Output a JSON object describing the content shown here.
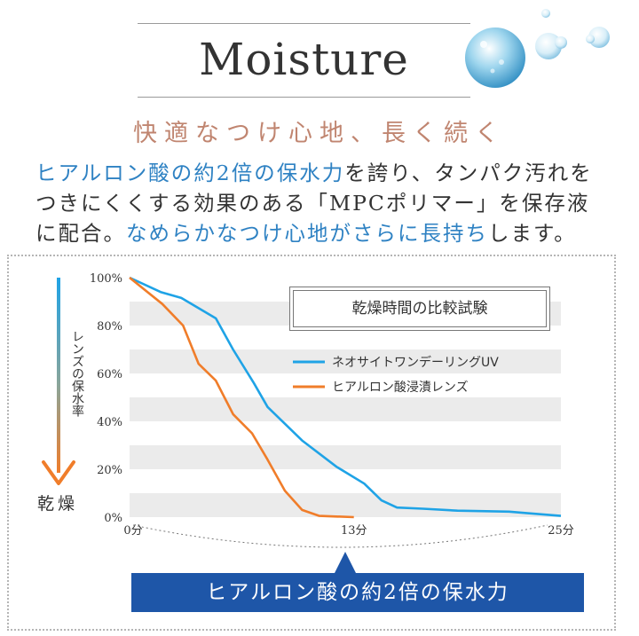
{
  "header": {
    "title": "Moisture",
    "subtitle": "快適なつけ心地、長く続く"
  },
  "body": {
    "line1_hl": "ヒアルロン酸の約2倍の保水力",
    "line1_rest": "を誇り、タンパク汚れを",
    "line2": "つきにくくする効果のある「MPCポリマー」を保存液",
    "line3_a": "に配合。",
    "line3_hl": "なめらかなつけ心地がさらに長持ち",
    "line3_b": "します。"
  },
  "colors": {
    "title_accent": "#c08570",
    "highlight_blue": "#2f82c3",
    "series_blue": "#1fa3e6",
    "series_orange": "#f07d2a",
    "badge_blue": "#1e56a8"
  },
  "chart_data": {
    "type": "line",
    "title": "乾燥時間の比較試験",
    "ylabel": "レンズの保水率",
    "y_arrow_end_label": "乾燥",
    "yticks": [
      "100%",
      "80%",
      "60%",
      "40%",
      "20%",
      "0%"
    ],
    "xticks": [
      {
        "x": 0,
        "label": "0分"
      },
      {
        "x": 13,
        "label": "13分"
      },
      {
        "x": 25,
        "label": "25分"
      }
    ],
    "xlim": [
      0,
      25
    ],
    "ylim": [
      0,
      100
    ],
    "grid": "horizontal bands",
    "legend_position": "top-right",
    "series": [
      {
        "name": "ネオサイトワンデーリングUV",
        "color": "#1fa3e6",
        "points": [
          [
            0,
            100
          ],
          [
            1.8,
            94
          ],
          [
            3,
            91.5
          ],
          [
            5,
            83
          ],
          [
            6,
            70
          ],
          [
            7.2,
            56
          ],
          [
            8,
            46
          ],
          [
            10,
            32
          ],
          [
            12,
            21
          ],
          [
            13.6,
            14
          ],
          [
            14.6,
            7
          ],
          [
            15.5,
            4
          ],
          [
            17,
            3.5
          ],
          [
            19,
            2.7
          ],
          [
            22,
            2.3
          ],
          [
            23,
            1.7
          ],
          [
            25,
            0.5
          ]
        ]
      },
      {
        "name": "ヒアルロン酸浸漬レンズ",
        "color": "#f07d2a",
        "points": [
          [
            0,
            100
          ],
          [
            1.9,
            89
          ],
          [
            3.1,
            80
          ],
          [
            4,
            64
          ],
          [
            5,
            57
          ],
          [
            6,
            43
          ],
          [
            7.1,
            35
          ],
          [
            8,
            24
          ],
          [
            9,
            11
          ],
          [
            10,
            3
          ],
          [
            11,
            0.5
          ],
          [
            13,
            0
          ]
        ]
      }
    ],
    "badge": "ヒアルロン酸の約2倍の保水力"
  },
  "icons": [
    "water-drops-icon",
    "down-arrow-icon"
  ]
}
